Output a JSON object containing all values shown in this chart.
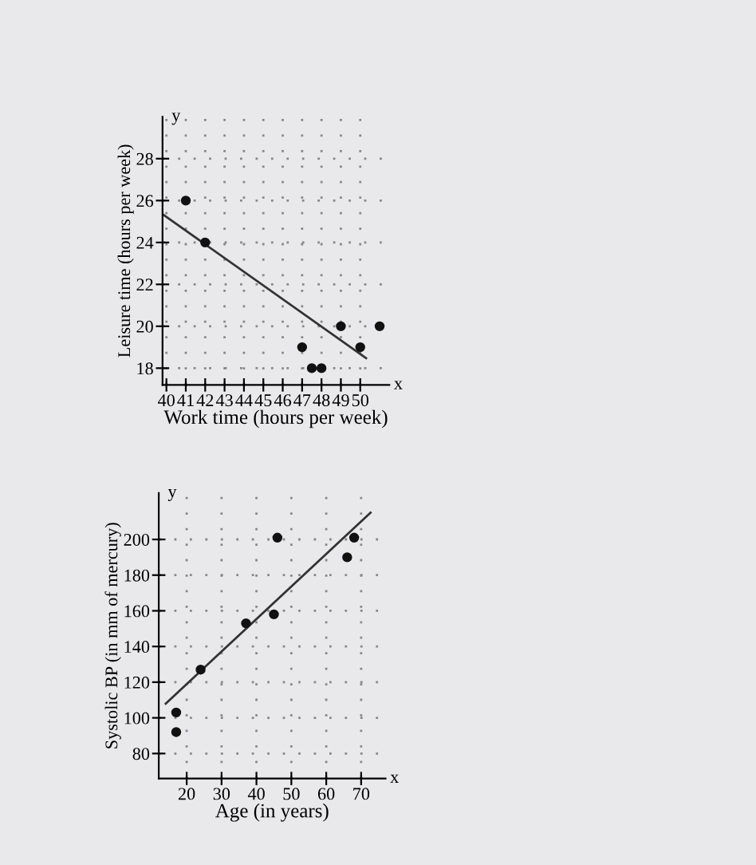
{
  "chart_data": [
    {
      "type": "scatter",
      "xlabel": "Work time (hours per week)",
      "ylabel": "Leisure time (hours per week)",
      "annotations": [
        "x",
        "y"
      ],
      "series": [
        {
          "color": "#111111",
          "marker": "circle",
          "x": [
            41,
            42,
            47,
            47.5,
            48,
            49,
            50,
            51
          ],
          "values": [
            26,
            24,
            19,
            18,
            18,
            20,
            19,
            20
          ]
        },
        {
          "type": "line",
          "marker": "none",
          "color": "#333333",
          "x": [
            39.8,
            50.3
          ],
          "values": [
            25.35,
            18.48
          ]
        }
      ],
      "xlim": [
        39.8,
        51.5
      ],
      "xticks": [
        40,
        41,
        42,
        43,
        44,
        45,
        46,
        47,
        48,
        49,
        50
      ],
      "ylim": [
        17.2,
        30
      ],
      "yticks": [
        18,
        20,
        22,
        24,
        26,
        28
      ],
      "grid": true
    },
    {
      "type": "scatter",
      "xlabel": "Age (in years)",
      "ylabel": "Systolic BP (in mm of mercury)",
      "annotations": [
        "x",
        "y"
      ],
      "series": [
        {
          "color": "#111111",
          "marker": "circle",
          "x": [
            17,
            17,
            24,
            37,
            45,
            46,
            66,
            68
          ],
          "values": [
            103,
            92,
            127,
            153,
            158,
            201,
            190,
            201
          ]
        },
        {
          "type": "line",
          "marker": "none",
          "color": "#333333",
          "x": [
            14,
            72.7
          ],
          "values": [
            108,
            215
          ]
        }
      ],
      "xlim": [
        12,
        77
      ],
      "xticks": [
        20,
        30,
        40,
        50,
        60,
        70
      ],
      "ylim": [
        66,
        226
      ],
      "yticks": [
        80,
        100,
        120,
        140,
        160,
        180,
        200
      ],
      "grid": true
    }
  ]
}
